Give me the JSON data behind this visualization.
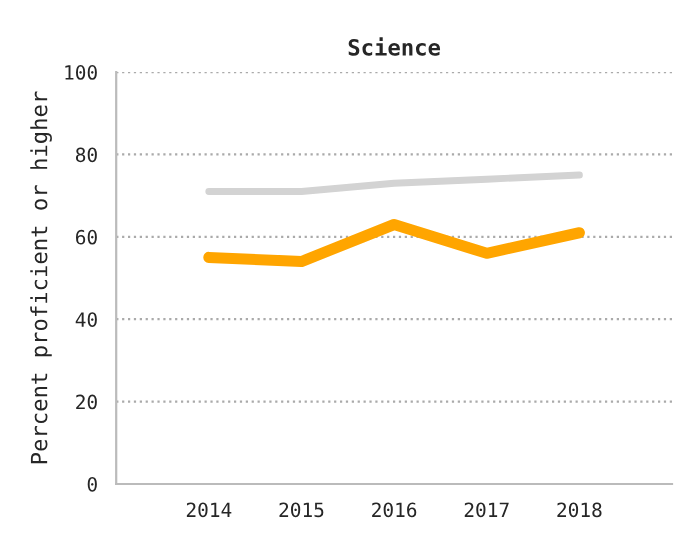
{
  "chart_data": {
    "type": "line",
    "title": "Science",
    "ylabel": "Percent proficient or higher",
    "categories": [
      "2014",
      "2015",
      "2016",
      "2017",
      "2018"
    ],
    "series": [
      {
        "color": "#d3d3d3",
        "values": [
          71,
          71,
          73,
          74,
          75
        ]
      },
      {
        "color": "#ffa500",
        "values": [
          55,
          54,
          63,
          56,
          61
        ]
      }
    ],
    "ylim": [
      0,
      100
    ],
    "yticks": [
      0,
      20,
      40,
      60,
      80,
      100
    ],
    "grid": "y",
    "legend": false
  }
}
